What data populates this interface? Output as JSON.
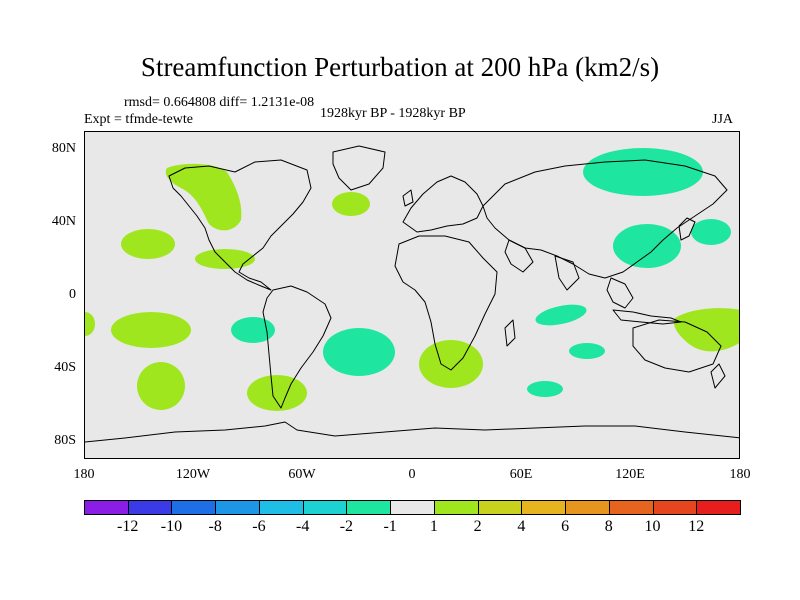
{
  "title": "Streamfunction Perturbation at 200 hPa (km2/s)",
  "stats": "rmsd= 0.664808 diff= 1.2131e-08",
  "experiment": "Expt = tfmde-tewte",
  "period": "1928kyr BP - 1928kyr BP",
  "season": "JJA",
  "y_axis": {
    "ticks": [
      "80N",
      "40N",
      "0",
      "40S",
      "80S"
    ]
  },
  "x_axis": {
    "ticks": [
      "180",
      "120W",
      "60W",
      "0",
      "60E",
      "120E",
      "180"
    ]
  },
  "colorbar": {
    "labels": [
      "-12",
      "-10",
      "-8",
      "-6",
      "-4",
      "-2",
      "-1",
      "1",
      "2",
      "4",
      "6",
      "8",
      "10",
      "12"
    ],
    "colors": [
      "#8a1ee6",
      "#3a3ae6",
      "#1e6ee6",
      "#1e96e6",
      "#1ebee6",
      "#1ed2d2",
      "#1ee6a0",
      "#e8e8e8",
      "#a0e61e",
      "#c8d21e",
      "#e6b41e",
      "#e6961e",
      "#e6641e",
      "#e6461e",
      "#e61e1e"
    ]
  },
  "colors": {
    "background": "#e8e8e8",
    "positive_anomaly": "#a0e61e",
    "negative_anomaly": "#1ee6a0",
    "coastline": "#000000"
  }
}
